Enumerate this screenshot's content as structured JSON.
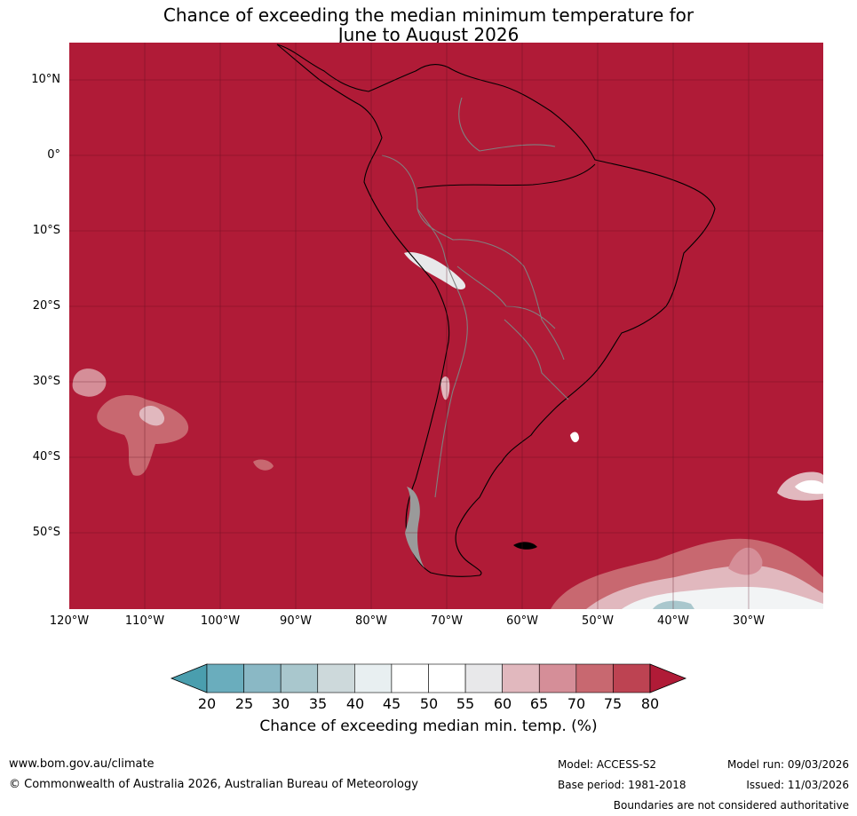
{
  "title": {
    "line1": "Chance of exceeding the median minimum temperature for",
    "line2": "June to August 2026"
  },
  "map": {
    "lat_labels": [
      "10°N",
      "0°",
      "10°S",
      "20°S",
      "30°S",
      "40°S",
      "50°S"
    ],
    "lon_labels": [
      "120°W",
      "110°W",
      "100°W",
      "90°W",
      "80°W",
      "70°W",
      "60°W",
      "50°W",
      "40°W",
      "30°W"
    ],
    "colors": {
      "background_class": "#b01b37",
      "gridline": "#5a0c1b",
      "coastline": "#000000",
      "borders": "#808080",
      "ice": "#9a9a9a"
    }
  },
  "colorbar": {
    "ticks": [
      "20",
      "25",
      "30",
      "35",
      "40",
      "45",
      "50",
      "55",
      "60",
      "65",
      "70",
      "75",
      "80"
    ],
    "colors": [
      "#4a9eae",
      "#6aadbd",
      "#8ab8c5",
      "#a9c7cd",
      "#cdd9db",
      "#e8eff1",
      "#ffffff",
      "#ffffff",
      "#e8e8ea",
      "#e1b8be",
      "#d58e98",
      "#c86870",
      "#bd4352",
      "#b01b37"
    ],
    "label": "Chance of exceeding median min. temp. (%)"
  },
  "footer": {
    "website": "www.bom.gov.au/climate",
    "copyright": "© Commonwealth of Australia 2026, Australian Bureau of Meteorology",
    "model": "Model: ACCESS-S2",
    "base_period": "Base period: 1981-2018",
    "model_run": "Model run: 09/03/2026",
    "issued": "Issued: 11/03/2026",
    "disclaimer": "Boundaries are not considered authoritative"
  }
}
